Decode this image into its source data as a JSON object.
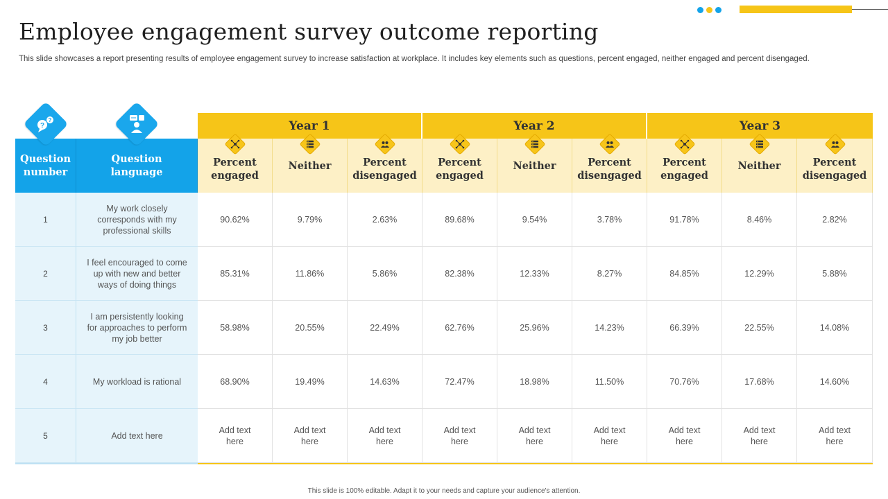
{
  "title": "Employee engagement survey outcome reporting",
  "subtitle": "This slide showcases a report presenting results of employee engagement survey to increase satisfaction at workplace. It includes key elements such as questions, percent engaged, neither engaged and percent disengaged.",
  "footer": "This slide is 100% editable. Adapt it to your needs and capture your audience's attention.",
  "colors": {
    "accent_yellow": "#f6c518",
    "accent_blue": "#13a3e9",
    "light_yellow": "#fdf0c6",
    "light_blue": "#e6f4fb"
  },
  "icons": {
    "question_number": "question-marks-icon",
    "question_language": "speaker-chat-icon",
    "engaged": "network-icon",
    "neither": "list-icon",
    "disengaged": "people-icon"
  },
  "table": {
    "col_question_number": "Question number",
    "col_question_language": "Question language",
    "years": [
      "Year 1",
      "Year 2",
      "Year 3"
    ],
    "sub_headers": [
      "Percent engaged",
      "Neither",
      "Percent disengaged"
    ],
    "rows": [
      {
        "number": "1",
        "question": "My work closely corresponds with my professional skills",
        "values": [
          "90.62%",
          "9.79%",
          "2.63%",
          "89.68%",
          "9.54%",
          "3.78%",
          "91.78%",
          "8.46%",
          "2.82%"
        ]
      },
      {
        "number": "2",
        "question": "I feel encouraged to come up with new and better ways of doing things",
        "values": [
          "85.31%",
          "11.86%",
          "5.86%",
          "82.38%",
          "12.33%",
          "8.27%",
          "84.85%",
          "12.29%",
          "5.88%"
        ]
      },
      {
        "number": "3",
        "question": "I am persistently looking for approaches to perform my job better",
        "values": [
          "58.98%",
          "20.55%",
          "22.49%",
          "62.76%",
          "25.96%",
          "14.23%",
          "66.39%",
          "22.55%",
          "14.08%"
        ]
      },
      {
        "number": "4",
        "question": "My workload is rational",
        "values": [
          "68.90%",
          "19.49%",
          "14.63%",
          "72.47%",
          "18.98%",
          "11.50%",
          "70.76%",
          "17.68%",
          "14.60%"
        ]
      },
      {
        "number": "5",
        "question": "Add text here",
        "values": [
          "Add text here",
          "Add text here",
          "Add text here",
          "Add text here",
          "Add text here",
          "Add text here",
          "Add text here",
          "Add text here",
          "Add text here"
        ]
      }
    ]
  }
}
